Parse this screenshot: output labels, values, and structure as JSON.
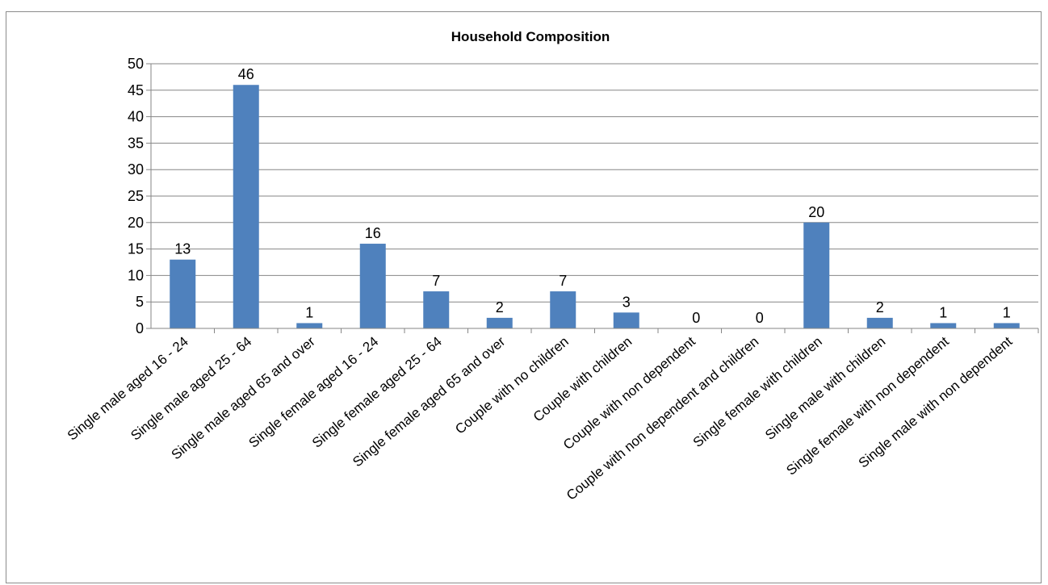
{
  "chart_data": {
    "type": "bar",
    "title": "Household Composition",
    "xlabel": "",
    "ylabel": "",
    "ylim": [
      0,
      50
    ],
    "ytick_step": 5,
    "yticks": [
      "0",
      "5",
      "10",
      "15",
      "20",
      "25",
      "30",
      "35",
      "40",
      "45",
      "50"
    ],
    "grid": true,
    "legend": "none",
    "bar_color": "#4f81bd",
    "categories": [
      "Single male aged 16 - 24",
      "Single male aged 25 - 64",
      "Single male aged 65 and over",
      "Single female aged 16 - 24",
      "Single female aged 25 - 64",
      "Single female aged 65 and over",
      "Couple with no children",
      "Couple with children",
      "Couple with non dependent",
      "Couple with non dependent and children",
      "Single female with children",
      "Single male with children",
      "Single female with non dependent",
      "Single male with non dependent"
    ],
    "values": [
      13,
      46,
      1,
      16,
      7,
      2,
      7,
      3,
      0,
      0,
      20,
      2,
      1,
      1
    ],
    "data_labels": [
      "13",
      "46",
      "1",
      "16",
      "7",
      "2",
      "7",
      "3",
      "0",
      "0",
      "20",
      "2",
      "1",
      "1"
    ]
  }
}
